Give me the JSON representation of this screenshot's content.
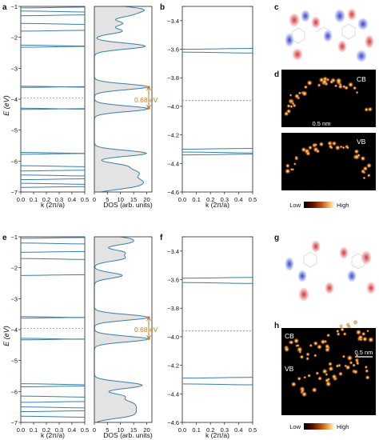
{
  "panel_letters": {
    "a": "a",
    "b": "b",
    "c": "c",
    "d": "d",
    "e": "e",
    "f": "f",
    "g": "g",
    "h": "h"
  },
  "labels": {
    "e_axis_top": "E (eV)",
    "e_axis_bottom": "E (eV)",
    "k_axis": "k (2π/a)",
    "dos_axis": "DOS (arb. units)",
    "gap_top": "0.68 eV",
    "gap_bottom": "0.68 eV",
    "cb": "CB",
    "vb": "VB",
    "scalebar": "0.5 nm",
    "legend_low": "Low",
    "legend_high": "High"
  },
  "colors": {
    "band": "#3b7ea6",
    "gap": "#c87a1e",
    "dos_fill": "#e3e3e3",
    "dashed": "#777777"
  },
  "chart_data": [
    {
      "id": "a_bands",
      "type": "line",
      "xlabel": "k (2π/a)",
      "ylabel": "E (eV)",
      "xlim": [
        0,
        0.5
      ],
      "ylim": [
        -7,
        -1
      ],
      "xticks": [
        "0.0",
        "0.1",
        "0.2",
        "0.3",
        "0.4",
        "0.5"
      ],
      "yticks": [
        "-7",
        "-6",
        "-5",
        "-4",
        "-3",
        "-2",
        "-1"
      ],
      "band_energies": [
        -1.05,
        -1.15,
        -1.3,
        -1.55,
        -1.8,
        -2.25,
        -2.32,
        -3.58,
        -3.62,
        -4.29,
        -4.33,
        -5.72,
        -5.78,
        -6.15,
        -6.32,
        -6.45,
        -6.6,
        -6.72,
        -6.85
      ],
      "fermi_dashed": -3.96
    },
    {
      "id": "a_dos",
      "type": "area",
      "xlabel": "DOS (arb. units)",
      "xlim": [
        0,
        22
      ],
      "xticks": [
        "0",
        "5",
        "10",
        "15",
        "20"
      ],
      "ylim": [
        -7,
        -1
      ],
      "gap_label": "0.68 eV",
      "gap_range": [
        -4.29,
        -3.61
      ]
    },
    {
      "id": "b_bands",
      "type": "line",
      "xlabel": "k (2π/a)",
      "xlim": [
        0,
        0.5
      ],
      "ylim": [
        -4.6,
        -3.3
      ],
      "xticks": [
        "0.0",
        "0.1",
        "0.2",
        "0.3",
        "0.4",
        "0.5"
      ],
      "yticks": [
        "-4.6",
        "-4.4",
        "-4.2",
        "-4.0",
        "-3.8",
        "-3.6",
        "-3.4"
      ],
      "band_energies": [
        -3.6,
        -3.62,
        -4.3,
        -4.32,
        -4.34
      ],
      "fermi_dashed": -3.96
    },
    {
      "id": "e_bands",
      "type": "line",
      "xlabel": "k (2π/a)",
      "ylabel": "E (eV)",
      "xlim": [
        0,
        0.5
      ],
      "ylim": [
        -7,
        -1
      ],
      "xticks": [
        "0.0",
        "0.1",
        "0.2",
        "0.3",
        "0.4",
        "0.5"
      ],
      "yticks": [
        "-7",
        "-6",
        "-5",
        "-4",
        "-3",
        "-2",
        "-1"
      ],
      "band_energies": [
        -1.05,
        -1.2,
        -1.5,
        -1.7,
        -2.25,
        -3.58,
        -3.63,
        -4.28,
        -4.33,
        -5.75,
        -5.85,
        -6.15,
        -6.35,
        -6.5,
        -6.65,
        -6.8
      ],
      "fermi_dashed": -3.96
    },
    {
      "id": "e_dos",
      "type": "area",
      "xlabel": "DOS (arb. units)",
      "xlim": [
        0,
        22
      ],
      "xticks": [
        "0",
        "5",
        "10",
        "15",
        "20"
      ],
      "ylim": [
        -7,
        -1
      ],
      "gap_label": "0.68 eV",
      "gap_range": [
        -4.29,
        -3.61
      ]
    },
    {
      "id": "f_bands",
      "type": "line",
      "xlabel": "k (2π/a)",
      "xlim": [
        0,
        0.5
      ],
      "ylim": [
        -4.6,
        -3.3
      ],
      "xticks": [
        "0.0",
        "0.1",
        "0.2",
        "0.3",
        "0.4",
        "0.5"
      ],
      "yticks": [
        "-4.6",
        "-4.4",
        "-4.2",
        "-4.0",
        "-3.8",
        "-3.6",
        "-3.4"
      ],
      "band_energies": [
        -3.59,
        -3.62,
        -4.29,
        -4.33
      ],
      "fermi_dashed": -3.96
    }
  ]
}
